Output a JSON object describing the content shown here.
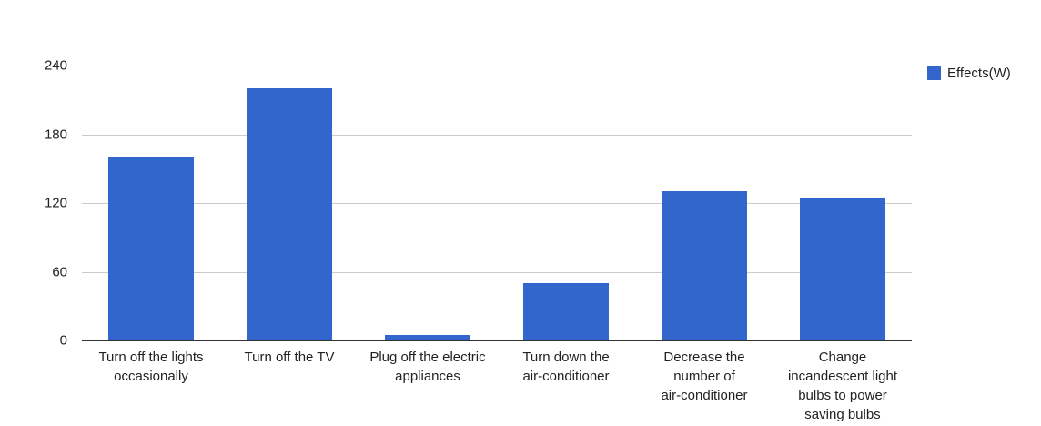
{
  "chart_data": {
    "type": "bar",
    "title": "",
    "xlabel": "",
    "ylabel": "",
    "categories": [
      "Turn off the lights occasionally",
      "Turn off the TV",
      "Plug off the electric appliances",
      "Turn down the air-conditioner",
      "Decrease the number of air-conditioner",
      "Change incandescent light bulbs to power saving bulbs"
    ],
    "category_lines": [
      [
        "Turn off the lights",
        "occasionally"
      ],
      [
        "Turn off the TV"
      ],
      [
        "Plug off the electric",
        "appliances"
      ],
      [
        "Turn down the",
        "air-conditioner"
      ],
      [
        "Decrease the",
        "number of",
        "air-conditioner"
      ],
      [
        "Change",
        "incandescent light",
        "bulbs to power",
        "saving bulbs"
      ]
    ],
    "series": [
      {
        "name": "Effects(W)",
        "values": [
          160,
          220,
          5,
          50,
          130,
          125
        ],
        "color": "#3366cc"
      }
    ],
    "ylim": [
      0,
      240
    ],
    "yticks": [
      0,
      60,
      120,
      180,
      240
    ],
    "grid": true,
    "legend_position": "right"
  },
  "colors": {
    "bar": "#3366cc",
    "gridline": "#cccccc",
    "axis_line": "#333333",
    "text": "#222222",
    "background": "#ffffff"
  },
  "legend": {
    "label": "Effects(W)"
  }
}
